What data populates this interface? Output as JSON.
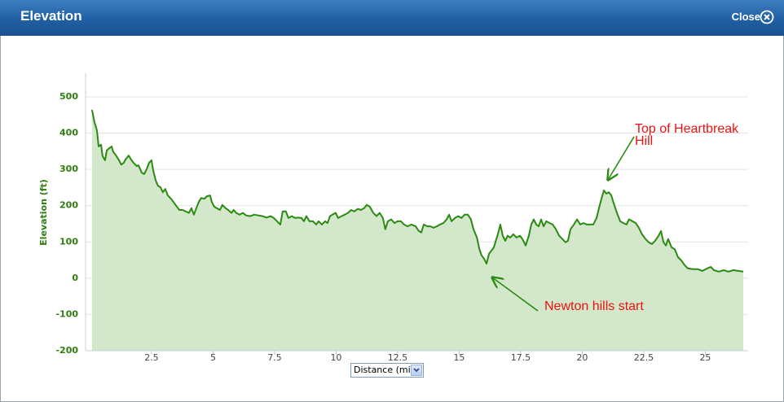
{
  "window": {
    "title": "Elevation",
    "close": "Close"
  },
  "x_selector": "Distance (mi)",
  "chart_data": {
    "type": "area",
    "y_label": "Elevation (ft)",
    "color": "#2b8a12",
    "fill": "#d3e8cb",
    "grid": true,
    "xlim": [
      -0.18,
      26.74
    ],
    "ylim": [
      -200,
      565
    ],
    "xticks": [
      2.5,
      5,
      7.5,
      10,
      12.5,
      15,
      17.5,
      20,
      22.5,
      25
    ],
    "yticks": [
      -200,
      -100,
      0,
      100,
      200,
      300,
      400,
      500
    ],
    "x": [
      0.08,
      0.18,
      0.28,
      0.35,
      0.45,
      0.51,
      0.61,
      0.68,
      0.78,
      0.88,
      0.94,
      1.04,
      1.18,
      1.27,
      1.37,
      1.44,
      1.57,
      1.67,
      1.77,
      1.9,
      1.97,
      2.1,
      2.2,
      2.3,
      2.4,
      2.5,
      2.57,
      2.67,
      2.76,
      2.86,
      2.96,
      3.06,
      3.16,
      3.29,
      3.39,
      3.53,
      3.63,
      3.76,
      3.89,
      4.02,
      4.12,
      4.22,
      4.32,
      4.42,
      4.52,
      4.65,
      4.75,
      4.88,
      4.95,
      5.05,
      5.15,
      5.28,
      5.38,
      5.51,
      5.61,
      5.75,
      5.84,
      5.94,
      6.08,
      6.21,
      6.34,
      6.51,
      6.67,
      6.84,
      7.01,
      7.17,
      7.34,
      7.47,
      7.6,
      7.73,
      7.83,
      7.96,
      8.06,
      8.2,
      8.33,
      8.46,
      8.59,
      8.69,
      8.79,
      8.92,
      9.06,
      9.19,
      9.29,
      9.42,
      9.55,
      9.65,
      9.75,
      9.85,
      9.98,
      10.08,
      10.22,
      10.35,
      10.48,
      10.61,
      10.74,
      10.88,
      11.01,
      11.14,
      11.24,
      11.37,
      11.51,
      11.64,
      11.77,
      11.9,
      12.0,
      12.1,
      12.24,
      12.37,
      12.5,
      12.63,
      12.76,
      12.9,
      13.06,
      13.23,
      13.36,
      13.46,
      13.56,
      13.7,
      13.83,
      13.96,
      14.09,
      14.22,
      14.36,
      14.49,
      14.59,
      14.69,
      14.83,
      14.96,
      15.09,
      15.22,
      15.35,
      15.48,
      15.58,
      15.72,
      15.82,
      15.91,
      16.01,
      16.11,
      16.21,
      16.31,
      16.41,
      16.47,
      16.57,
      16.67,
      16.77,
      16.87,
      16.97,
      17.07,
      17.2,
      17.33,
      17.47,
      17.57,
      17.7,
      17.83,
      17.93,
      18.03,
      18.13,
      18.23,
      18.33,
      18.43,
      18.54,
      18.67,
      18.8,
      18.93,
      19.06,
      19.19,
      19.32,
      19.42,
      19.52,
      19.66,
      19.79,
      19.92,
      20.05,
      20.18,
      20.32,
      20.45,
      20.58,
      20.68,
      20.78,
      20.88,
      20.98,
      21.08,
      21.18,
      21.28,
      21.41,
      21.54,
      21.67,
      21.8,
      21.9,
      22.04,
      22.17,
      22.3,
      22.43,
      22.57,
      22.7,
      22.83,
      22.96,
      23.1,
      23.2,
      23.3,
      23.4,
      23.49,
      23.63,
      23.76,
      23.89,
      24.02,
      24.16,
      24.29,
      24.49,
      24.69,
      24.88,
      25.08,
      25.22,
      25.35,
      25.55,
      25.75,
      25.94,
      26.14,
      26.34,
      26.54
    ],
    "values": [
      464,
      430,
      408,
      363,
      368,
      337,
      325,
      352,
      358,
      363,
      349,
      340,
      325,
      313,
      318,
      327,
      338,
      327,
      318,
      309,
      311,
      291,
      287,
      300,
      318,
      325,
      296,
      269,
      255,
      251,
      237,
      246,
      228,
      219,
      210,
      197,
      188,
      188,
      184,
      180,
      193,
      175,
      193,
      210,
      221,
      219,
      226,
      228,
      210,
      197,
      193,
      188,
      202,
      193,
      188,
      180,
      188,
      180,
      175,
      180,
      173,
      171,
      175,
      173,
      171,
      167,
      171,
      166,
      157,
      148,
      184,
      184,
      166,
      171,
      166,
      167,
      166,
      157,
      171,
      157,
      157,
      148,
      157,
      148,
      157,
      152,
      171,
      175,
      180,
      166,
      171,
      175,
      180,
      188,
      184,
      191,
      188,
      193,
      202,
      197,
      180,
      171,
      180,
      166,
      135,
      157,
      162,
      152,
      157,
      157,
      148,
      143,
      148,
      143,
      130,
      126,
      148,
      143,
      143,
      139,
      143,
      148,
      152,
      162,
      175,
      157,
      166,
      171,
      166,
      175,
      175,
      162,
      135,
      112,
      80,
      63,
      54,
      40,
      67,
      76,
      85,
      99,
      121,
      148,
      117,
      103,
      117,
      112,
      121,
      112,
      117,
      108,
      90,
      117,
      148,
      162,
      148,
      143,
      162,
      143,
      157,
      152,
      148,
      135,
      117,
      108,
      99,
      103,
      135,
      148,
      162,
      148,
      152,
      148,
      148,
      148,
      166,
      193,
      219,
      242,
      233,
      237,
      228,
      206,
      180,
      157,
      152,
      148,
      162,
      157,
      152,
      139,
      121,
      108,
      99,
      94,
      103,
      117,
      130,
      99,
      90,
      108,
      85,
      80,
      58,
      49,
      36,
      27,
      25,
      25,
      20,
      27,
      31,
      22,
      18,
      22,
      18,
      22,
      20,
      18
    ],
    "annotations": [
      "Top of Heartbreak Hill",
      "Newton hills start"
    ]
  }
}
